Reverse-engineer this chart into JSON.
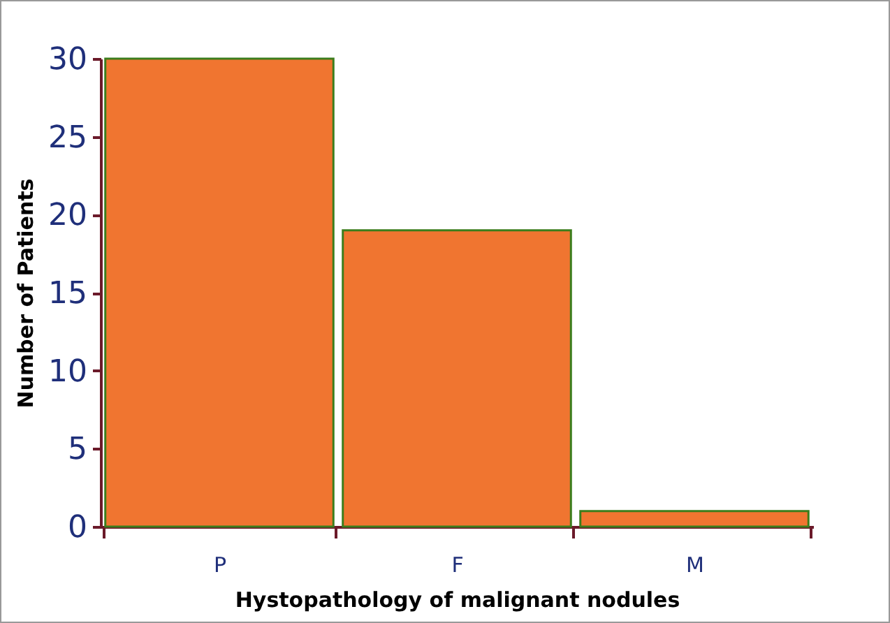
{
  "chart_data": {
    "type": "bar",
    "xlabel": "Hystopathology of malignant nodules",
    "ylabel": "Number of Patients",
    "categories": [
      "P",
      "F",
      "M"
    ],
    "values": [
      30,
      19,
      1
    ],
    "color": "#f07530",
    "ylim": [
      0,
      30
    ],
    "yticks": [
      0,
      5,
      10,
      15,
      20,
      25,
      30
    ],
    "grid": false
  }
}
